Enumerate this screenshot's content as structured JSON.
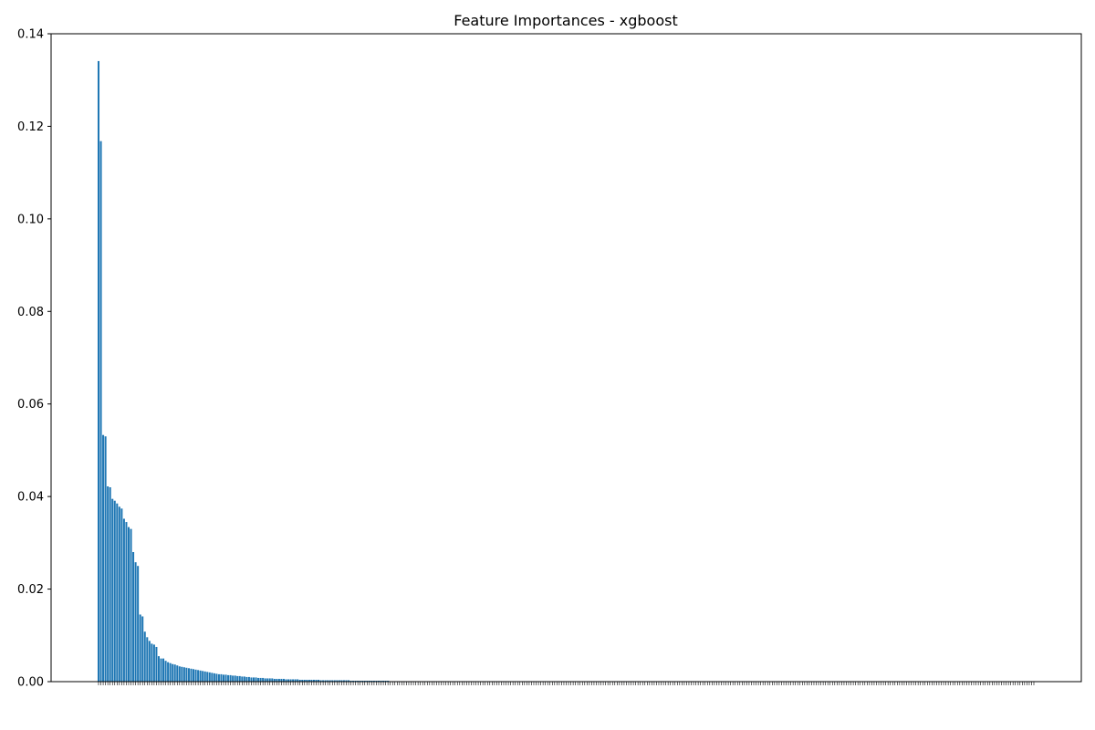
{
  "chart_data": {
    "type": "bar",
    "title": "Feature Importances - xgboost",
    "xlabel": "",
    "ylabel": "",
    "ylim": [
      0,
      0.14
    ],
    "yticks": [
      "0.00",
      "0.02",
      "0.04",
      "0.06",
      "0.08",
      "0.10",
      "0.12",
      "0.14"
    ],
    "ytick_values": [
      0,
      0.02,
      0.04,
      0.06,
      0.08,
      0.1,
      0.12,
      0.14
    ],
    "bar_color": "#1f77b4",
    "grid": false,
    "legend": "none",
    "n_features": 400,
    "values": [
      0.1341,
      0.1168,
      0.0533,
      0.053,
      0.0422,
      0.042,
      0.0395,
      0.0391,
      0.0385,
      0.0378,
      0.0374,
      0.0352,
      0.0345,
      0.0334,
      0.033,
      0.028,
      0.0258,
      0.025,
      0.0145,
      0.0141,
      0.0108,
      0.0096,
      0.0088,
      0.0082,
      0.008,
      0.0075,
      0.0055,
      0.005,
      0.005,
      0.0045,
      0.0042,
      0.004,
      0.0038,
      0.0037,
      0.0035,
      0.0033,
      0.0032,
      0.0031,
      0.003,
      0.0029,
      0.0028,
      0.0027,
      0.0026,
      0.0025,
      0.0024,
      0.0023,
      0.0022,
      0.0021,
      0.002,
      0.0019,
      0.0018,
      0.0017,
      0.0016,
      0.0016,
      0.0015,
      0.0015,
      0.0014,
      0.0014,
      0.0013,
      0.0013,
      0.0012,
      0.0012,
      0.0011,
      0.0011,
      0.001,
      0.001,
      0.0009,
      0.0009,
      0.0009,
      0.0008,
      0.0008,
      0.0008,
      0.0007,
      0.0007,
      0.0007,
      0.0007,
      0.0006,
      0.0006,
      0.0006,
      0.0006,
      0.0006,
      0.0005,
      0.0005,
      0.0005,
      0.0005,
      0.0005,
      0.0005,
      0.0004,
      0.0004,
      0.0004,
      0.0004,
      0.0004,
      0.0004,
      0.0004,
      0.0004,
      0.0004,
      0.0003,
      0.0003,
      0.0003,
      0.0003,
      0.0003,
      0.0003,
      0.0003,
      0.0003,
      0.0003,
      0.0003,
      0.0003,
      0.0003,
      0.0003,
      0.0002,
      0.0002,
      0.0002,
      0.0002,
      0.0002,
      0.0002,
      0.0002,
      0.0002,
      0.0002,
      0.0002,
      0.0002,
      0.0002,
      0.0002,
      0.0002,
      0.0002,
      0.0002,
      0.0002,
      0.0001,
      0.0001,
      0.0001,
      0.0001,
      0.0001,
      0.0001,
      0.0001,
      0.0001,
      0.0001,
      0.0001,
      0.0001,
      0.0001,
      0.0001,
      0.0001,
      0.0001,
      0.0001,
      0.0001,
      0.0001,
      0.0001,
      0.0001,
      0.0001,
      0.0001,
      0.0001,
      0.0001,
      0.0001,
      0.0001,
      0.0001,
      0.0001,
      0.0001,
      0.0001,
      0.0001,
      0.0001,
      0.0001,
      0.0001,
      0.0001,
      0.0001,
      0.0001,
      0.0001,
      0.0001,
      0.0001,
      0.0001,
      0.0001,
      0.0001,
      0.0001,
      0.0001,
      0.0001,
      0.0001,
      0.0001,
      0.0001,
      0.0001,
      0.0001,
      0.0001,
      0.0001,
      0.0001,
      0.0001,
      0.0001,
      0.0001,
      0.0001,
      0.0001,
      0.0001,
      0.0001,
      0.0001,
      0.0001,
      0.0001,
      0.0001,
      0.0001,
      0.0001,
      0.0001,
      0.0001,
      0.0001,
      0.0001,
      0.0001,
      0.0001,
      0.0001,
      0.0001,
      0.0001,
      0.0001,
      0.0001,
      0.0001,
      0.0001,
      0.0001,
      0.0001,
      0.0001,
      0.0001,
      0.0001,
      0.0001,
      0.0001,
      0.0001,
      0.0001,
      0.0001,
      0.0001,
      0.0001,
      0.0001,
      0.0001,
      0.0001,
      0.0001,
      0.0001,
      0.0001,
      0.0001,
      0.0001,
      0.0001,
      0.0001,
      0.0001,
      0.0001,
      0.0001,
      0.0001,
      0.0001,
      0.0001,
      0.0001,
      0.0001,
      0.0001,
      0.0001,
      0.0001,
      0.0001,
      0.0001,
      0.0001,
      0.0001,
      0.0001,
      0.0001,
      0.0001,
      0.0001,
      0.0001,
      0.0001,
      0.0001,
      0.0001,
      0.0001,
      0.0001,
      0.0001,
      0.0001,
      0.0001,
      0.0001,
      0.0001,
      0.0001,
      0.0001,
      0.0001,
      0.0001,
      0.0001,
      0.0001,
      0.0001,
      0.0001,
      0.0001,
      0.0001,
      0.0001,
      0.0001,
      0.0001,
      0.0001,
      0.0001,
      0.0001,
      0.0001,
      0.0001,
      0.0001,
      0.0001,
      0.0001,
      0.0001,
      0.0001,
      0.0001,
      0.0001,
      0.0001,
      0.0001,
      0.0001,
      0.0001,
      0.0001,
      0.0001,
      0.0001,
      0.0001,
      0.0001,
      0.0001,
      0.0001,
      0.0001,
      0.0001,
      0.0001,
      0.0001,
      0.0001,
      0.0001,
      0.0001,
      0.0001,
      0.0001,
      0.0001,
      0.0001,
      0.0001,
      0.0001,
      0.0001,
      0.0001,
      0.0001,
      0.0001,
      0.0001,
      0.0001,
      0.0001,
      0.0001,
      0.0001,
      0.0001,
      0.0001,
      0.0001,
      0.0001,
      0.0001,
      0.0001,
      0.0001,
      0.0001,
      0.0001,
      0.0001,
      0.0001,
      0.0001,
      0.0001,
      0.0001,
      0.0001,
      0.0001,
      0.0001,
      0.0001,
      0.0001,
      0.0001,
      0.0001,
      0.0001,
      0.0001,
      0.0001,
      0.0001,
      0.0001,
      0.0001,
      0.0001,
      0.0001,
      0.0001,
      0.0001,
      0.0001,
      0.0001,
      0.0001,
      0.0001,
      0.0001,
      0.0001,
      0.0001,
      0.0001,
      0.0001,
      0.0001,
      0.0001,
      0.0001,
      0.0001,
      0.0001,
      0.0001,
      0.0001,
      0.0001,
      0.0001,
      0.0001,
      0.0001,
      0.0001,
      0.0001,
      0.0001,
      0.0001,
      0.0001,
      0.0001,
      0.0001,
      0.0001,
      0.0001,
      0.0001,
      0.0001,
      0.0001,
      0.0001,
      0.0001,
      0.0001,
      0.0001,
      0.0001,
      0.0001,
      0.0001,
      0.0001,
      0.0001,
      0.0001,
      0.0001,
      0.0001,
      0.0001,
      0.0001,
      0.0001,
      0.0001,
      0.0001,
      0.0001,
      0.0001,
      0.0001,
      0.0001,
      0.0001,
      0.0001,
      0.0001,
      0.0001,
      0.0001
    ]
  }
}
